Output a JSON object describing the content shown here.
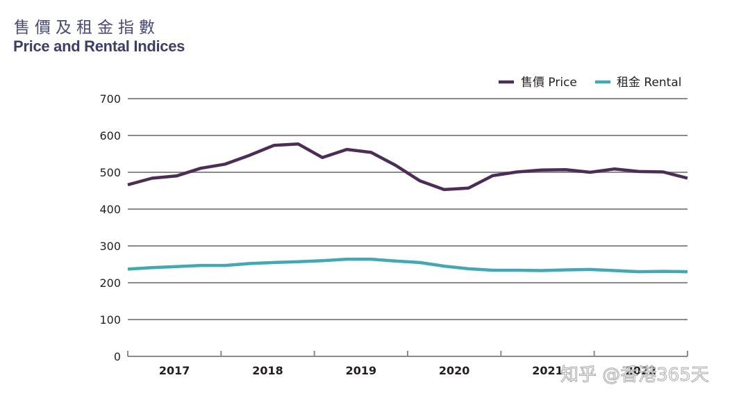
{
  "header": {
    "title_zh": "售價及租金指數",
    "title_en": "Price and Rental Indices"
  },
  "watermark": "知乎 @香港365天",
  "chart_data": {
    "type": "line",
    "title": "售價及租金指數 Price and Rental Indices",
    "xlabel": "",
    "ylabel": "",
    "ylim": [
      0,
      700
    ],
    "yticks": [
      0,
      100,
      200,
      300,
      400,
      500,
      600,
      700
    ],
    "grid": true,
    "legend_position": "top-right",
    "categories": [
      "2017",
      "2018",
      "2019",
      "2020",
      "2021",
      "2022"
    ],
    "points_per_category": 4,
    "series": [
      {
        "name": "售價 Price",
        "color": "#4b2d58",
        "values": [
          466,
          484,
          490,
          511,
          522,
          546,
          573,
          577,
          540,
          562,
          554,
          519,
          477,
          453,
          457,
          491,
          501,
          506,
          507,
          500,
          509,
          502,
          501,
          484
        ]
      },
      {
        "name": "租金 Rental",
        "color": "#3fa9b5",
        "values": [
          237,
          241,
          244,
          247,
          247,
          252,
          255,
          257,
          260,
          264,
          264,
          259,
          255,
          245,
          238,
          234,
          234,
          233,
          235,
          236,
          233,
          230,
          231,
          230
        ]
      }
    ]
  }
}
